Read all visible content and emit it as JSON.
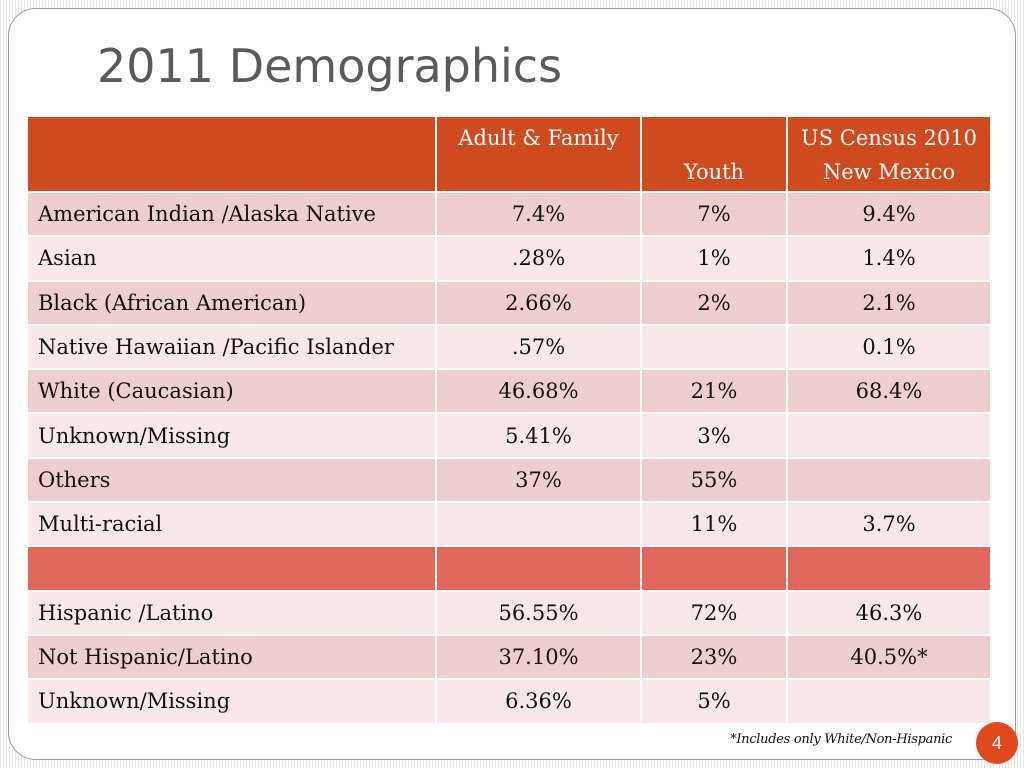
{
  "slide": {
    "title": "2011 Demographics",
    "footnote": "*Includes only White/Non-Hispanic",
    "page_number": "4",
    "accent_color": "#d04a1f",
    "divider_color": "#e0675a"
  },
  "table": {
    "headers": [
      {
        "line1": "",
        "line2": ""
      },
      {
        "line1": "Adult & Family",
        "line2": ""
      },
      {
        "line1": "",
        "line2": "Youth"
      },
      {
        "line1": "US Census 2010",
        "line2": "New Mexico"
      }
    ],
    "rows": [
      {
        "label": "American Indian /Alaska Native",
        "adult_family": "7.4%",
        "youth": "7%",
        "census": "9.4%"
      },
      {
        "label": "Asian",
        "adult_family": ".28%",
        "youth": "1%",
        "census": "1.4%"
      },
      {
        "label": "Black (African American)",
        "adult_family": "2.66%",
        "youth": "2%",
        "census": "2.1%"
      },
      {
        "label": "Native Hawaiian /Pacific Islander",
        "adult_family": ".57%",
        "youth": "",
        "census": "0.1%"
      },
      {
        "label": "White (Caucasian)",
        "adult_family": "46.68%",
        "youth": "21%",
        "census": "68.4%"
      },
      {
        "label": "Unknown/Missing",
        "adult_family": "5.41%",
        "youth": "3%",
        "census": ""
      },
      {
        "label": "Others",
        "adult_family": "37%",
        "youth": "55%",
        "census": ""
      },
      {
        "label": "Multi-racial",
        "adult_family": "",
        "youth": "11%",
        "census": "3.7%"
      },
      {
        "label": "",
        "adult_family": "",
        "youth": "",
        "census": ""
      },
      {
        "label": "Hispanic /Latino",
        "adult_family": "56.55%",
        "youth": "72%",
        "census": "46.3%"
      },
      {
        "label": "Not Hispanic/Latino",
        "adult_family": "37.10%",
        "youth": "23%",
        "census": "40.5%*"
      },
      {
        "label": "Unknown/Missing",
        "adult_family": "6.36%",
        "youth": "5%",
        "census": ""
      }
    ]
  }
}
